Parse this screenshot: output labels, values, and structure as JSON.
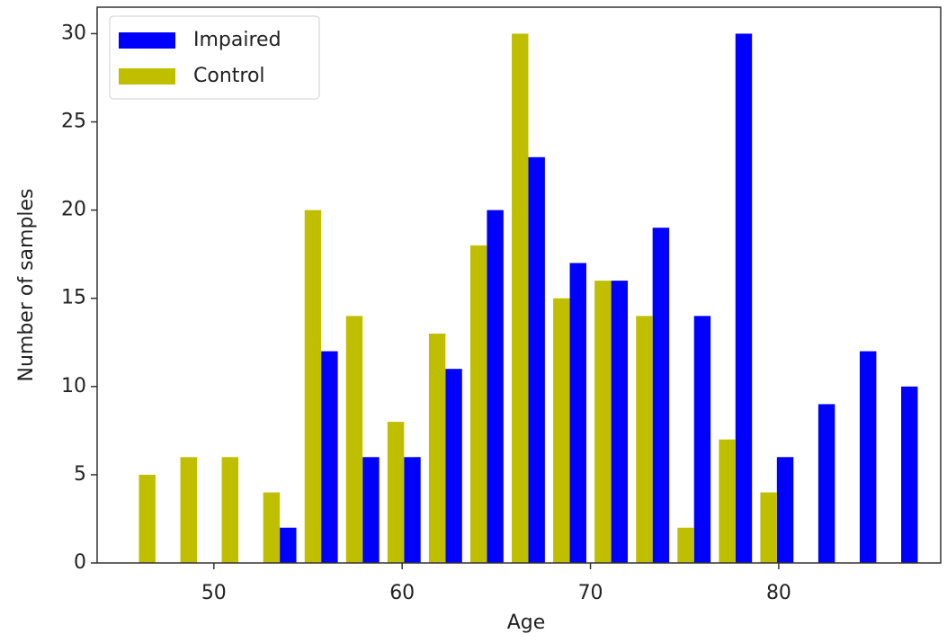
{
  "chart_data": {
    "type": "histogram",
    "x_label": "Age",
    "y_label": "Number of samples",
    "bins": [
      45.8,
      48.0,
      50.2,
      52.4,
      54.6,
      56.8,
      59.0,
      61.2,
      63.4,
      65.6,
      67.8,
      70.0,
      72.2,
      74.4,
      76.6,
      78.8,
      81.0,
      83.2,
      85.4,
      87.6
    ],
    "series": [
      {
        "name": "Impaired",
        "color": "#0000ff",
        "values": [
          0,
          0,
          0,
          2,
          12,
          6,
          6,
          11,
          20,
          23,
          17,
          16,
          19,
          14,
          30,
          6,
          9,
          12,
          10
        ]
      },
      {
        "name": "Control",
        "color": "#bfbf00",
        "values": [
          5,
          6,
          6,
          4,
          20,
          14,
          8,
          13,
          18,
          30,
          15,
          16,
          14,
          2,
          7,
          4,
          0,
          0,
          0
        ]
      }
    ],
    "xlim": [
      43.8,
      88.6
    ],
    "xticks": [
      50,
      60,
      70,
      80
    ],
    "ylim": [
      0,
      31.5
    ],
    "yticks": [
      0,
      5,
      10,
      15,
      20,
      25,
      30
    ],
    "legend": "upper left"
  }
}
